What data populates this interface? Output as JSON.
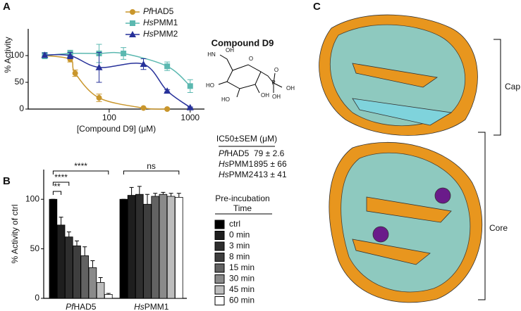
{
  "panels": [
    "A",
    "B",
    "C"
  ],
  "chart_data": [
    {
      "type": "line",
      "xlabel": "[Compound D9] (μM)",
      "ylabel": "% Activity",
      "xlog": true,
      "xlim": [
        10,
        1500
      ],
      "xticks": [
        100,
        1000
      ],
      "ylim": [
        0,
        150
      ],
      "yticks": [
        0,
        50,
        100
      ],
      "legend": "top-right",
      "series": [
        {
          "name": "PfHAD5",
          "color": "#c9962c",
          "marker": "circle",
          "x": [
            16,
            33,
            38,
            75,
            265,
            520
          ],
          "values": [
            100,
            93,
            67,
            21,
            2,
            0
          ],
          "errors": [
            5,
            5,
            6,
            7,
            1,
            1
          ]
        },
        {
          "name": "HsPMM1",
          "color": "#5bb8b0",
          "marker": "square",
          "x": [
            16,
            33,
            75,
            150,
            520,
            1000
          ],
          "values": [
            100,
            104,
            104,
            104,
            80,
            43
          ],
          "errors": [
            6,
            6,
            17,
            11,
            8,
            12
          ]
        },
        {
          "name": "HsPMM2",
          "color": "#27319a",
          "marker": "triangle",
          "x": [
            16,
            33,
            75,
            265,
            520,
            1000
          ],
          "values": [
            101,
            100,
            78,
            84,
            34,
            3
          ],
          "errors": [
            4,
            6,
            28,
            10,
            2,
            1
          ]
        }
      ]
    },
    {
      "type": "bar",
      "ylabel": "% Activity of ctrl",
      "categories": [
        "PfHAD5",
        "HsPMM1"
      ],
      "ylim": [
        0,
        130
      ],
      "yticks": [
        0,
        50,
        100
      ],
      "legend_title": [
        "Pre-incubation",
        "Time"
      ],
      "annotations": [
        "**",
        "****",
        "****",
        "ns"
      ],
      "series": [
        {
          "name": "ctrl",
          "color": "#000000",
          "values": [
            100,
            100
          ],
          "errors": [
            0,
            0
          ]
        },
        {
          "name": "0 min",
          "color": "#1e1e1e",
          "values": [
            74,
            104
          ],
          "errors": [
            8,
            8
          ]
        },
        {
          "name": "3 min",
          "color": "#2e2e2e",
          "values": [
            62,
            105
          ],
          "errors": [
            5,
            8
          ]
        },
        {
          "name": "8 min",
          "color": "#3e3e3e",
          "values": [
            53,
            95
          ],
          "errors": [
            5,
            10
          ]
        },
        {
          "name": "15 min",
          "color": "#626262",
          "values": [
            43,
            103
          ],
          "errors": [
            9,
            3
          ]
        },
        {
          "name": "30 min",
          "color": "#8a8a8a",
          "values": [
            31,
            105
          ],
          "errors": [
            7,
            2
          ]
        },
        {
          "name": "45 min",
          "color": "#bdbdbd",
          "values": [
            16,
            103
          ],
          "errors": [
            5,
            3
          ]
        },
        {
          "name": "60 min",
          "color": "#ffffff",
          "values": [
            4,
            102
          ],
          "errors": [
            1,
            4
          ]
        }
      ]
    }
  ],
  "compound": {
    "title": "Compound D9",
    "atoms": [
      "HN",
      "OH",
      "O",
      "HO",
      "HO",
      "OH",
      "P",
      "O",
      "OH",
      "OH"
    ]
  },
  "table": {
    "header": "IC50±SEM (μM)",
    "rows": [
      [
        "PfHAD5",
        "79 ± 2.6"
      ],
      [
        "HsPMM1",
        "895 ± 66"
      ],
      [
        "HsPMM2",
        "413 ± 41"
      ]
    ]
  },
  "structure": {
    "cap": "Cap",
    "core": "Core"
  }
}
